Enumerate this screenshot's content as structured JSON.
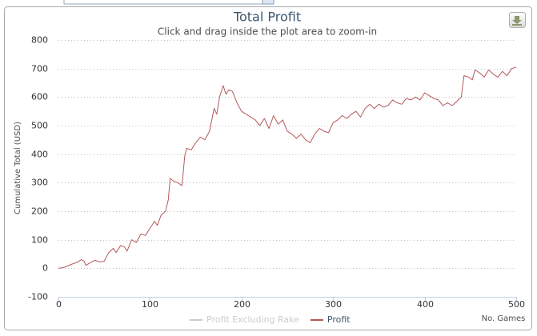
{
  "chart_data": {
    "type": "line",
    "title": "Total Profit",
    "subtitle": "Click and drag inside the plot area to zoom-in",
    "x_label": "No. Games",
    "y_label": "Cumulative Total (USD)",
    "xlim": [
      0,
      500
    ],
    "xticks": [
      0,
      100,
      200,
      300,
      400,
      500
    ],
    "ylim": [
      -100,
      800
    ],
    "yticks": [
      -100,
      0,
      100,
      200,
      300,
      400,
      500,
      600,
      700,
      800
    ],
    "grid": true,
    "x": [
      0,
      5,
      10,
      15,
      20,
      25,
      28,
      30,
      35,
      40,
      45,
      50,
      55,
      60,
      63,
      68,
      72,
      75,
      80,
      85,
      90,
      95,
      100,
      105,
      108,
      112,
      117,
      120,
      122,
      126,
      130,
      135,
      138,
      140,
      145,
      150,
      155,
      160,
      165,
      170,
      173,
      176,
      180,
      183,
      186,
      190,
      195,
      200,
      205,
      210,
      215,
      220,
      225,
      230,
      235,
      240,
      245,
      250,
      255,
      260,
      265,
      270,
      275,
      280,
      285,
      290,
      295,
      300,
      305,
      310,
      315,
      320,
      325,
      330,
      335,
      340,
      345,
      350,
      355,
      360,
      365,
      370,
      375,
      380,
      385,
      390,
      395,
      400,
      405,
      410,
      415,
      420,
      425,
      430,
      435,
      440,
      443,
      448,
      452,
      455,
      460,
      465,
      470,
      475,
      480,
      485,
      490,
      495,
      500
    ],
    "series": [
      {
        "name": "Profit Excluding Rake",
        "color": "#cccccc",
        "visible": false
      },
      {
        "name": "Profit",
        "color": "#b5595a",
        "visible": true,
        "values": [
          0,
          2,
          8,
          15,
          20,
          30,
          25,
          10,
          20,
          28,
          22,
          25,
          55,
          70,
          55,
          80,
          75,
          60,
          100,
          90,
          120,
          115,
          140,
          165,
          150,
          185,
          200,
          240,
          315,
          305,
          300,
          290,
          395,
          420,
          415,
          440,
          460,
          450,
          480,
          560,
          540,
          600,
          640,
          610,
          625,
          620,
          580,
          550,
          540,
          530,
          520,
          500,
          525,
          490,
          535,
          505,
          520,
          480,
          470,
          455,
          470,
          450,
          440,
          470,
          490,
          480,
          475,
          510,
          520,
          535,
          525,
          540,
          550,
          530,
          560,
          575,
          560,
          575,
          565,
          570,
          590,
          580,
          575,
          595,
          590,
          600,
          590,
          615,
          605,
          595,
          590,
          570,
          580,
          570,
          585,
          600,
          675,
          670,
          660,
          695,
          685,
          670,
          695,
          680,
          670,
          690,
          675,
          700,
          705
        ]
      }
    ]
  }
}
